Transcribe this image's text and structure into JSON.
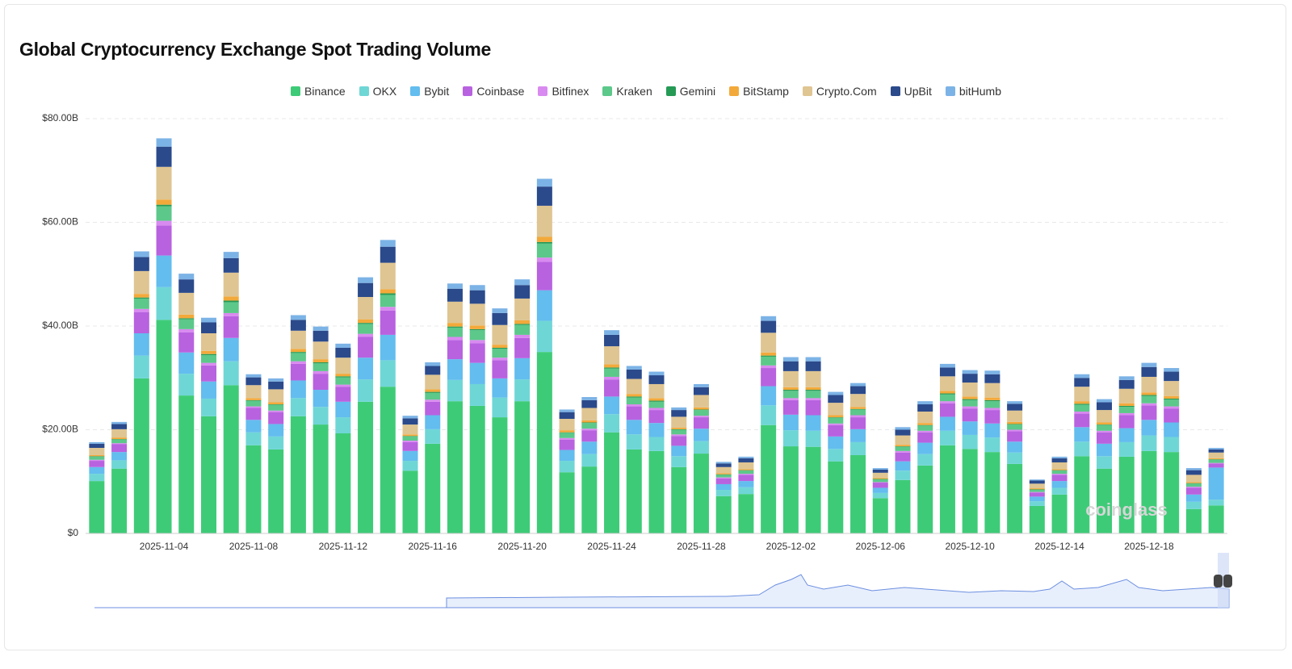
{
  "chart_data": {
    "type": "stacked_bar",
    "title": "Global Cryptocurrency Exchange Spot Trading Volume",
    "watermark": "coinglass",
    "categories": [
      null,
      null,
      null,
      "2025-11-04",
      null,
      null,
      null,
      "2025-11-08",
      null,
      null,
      null,
      "2025-11-12",
      null,
      null,
      null,
      "2025-11-16",
      null,
      null,
      null,
      "2025-11-20",
      null,
      null,
      null,
      "2025-11-24",
      null,
      null,
      null,
      "2025-11-28",
      null,
      null,
      null,
      "2025-12-02",
      null,
      null,
      null,
      "2025-12-06",
      null,
      null,
      null,
      "2025-12-10",
      null,
      null,
      null,
      "2025-12-14",
      null,
      null,
      null,
      "2025-12-18",
      null,
      null,
      null
    ],
    "ylim": [
      0,
      80
    ],
    "yticks": [
      {
        "value": 0,
        "label": "$0"
      },
      {
        "value": 20,
        "label": "$20.00B"
      },
      {
        "value": 40,
        "label": "$40.00B"
      },
      {
        "value": 60,
        "label": "$60.00B"
      },
      {
        "value": 80,
        "label": "$80.00B"
      }
    ],
    "grid": true,
    "legend": "top",
    "series": [
      {
        "name": "Binance",
        "color": "#3ecb78",
        "values": [
          10.1,
          12.5,
          29.9,
          41.2,
          26.6,
          22.6,
          28.6,
          17.0,
          16.2,
          22.6,
          21.0,
          19.3,
          25.4,
          28.3,
          12.1,
          17.3,
          25.5,
          24.6,
          22.4,
          25.5,
          35.0,
          11.8,
          12.9,
          19.5,
          16.2,
          15.9,
          12.8,
          15.4,
          7.2,
          7.6,
          20.9,
          16.8,
          16.7,
          13.9,
          15.1,
          6.8,
          10.3,
          13.1,
          17.0,
          16.3,
          15.7,
          13.4,
          5.3,
          7.5,
          14.9,
          12.5,
          14.8,
          15.9,
          15.7,
          4.7,
          5.4
        ]
      },
      {
        "name": "OKX",
        "color": "#6fd6d6",
        "values": [
          1.4,
          1.6,
          4.4,
          6.3,
          4.2,
          3.4,
          4.6,
          2.5,
          2.5,
          3.5,
          3.4,
          3.1,
          4.3,
          5.1,
          1.9,
          2.8,
          4.1,
          4.2,
          3.8,
          4.2,
          6.0,
          2.2,
          2.4,
          3.5,
          2.9,
          2.7,
          2.1,
          2.4,
          1.2,
          1.3,
          3.8,
          3.1,
          3.1,
          2.4,
          2.5,
          1.0,
          1.8,
          2.2,
          2.8,
          2.7,
          2.8,
          2.2,
          0.9,
          1.3,
          2.8,
          2.4,
          2.8,
          3.0,
          2.9,
          1.4,
          1.1
        ]
      },
      {
        "name": "Bybit",
        "color": "#63bdee",
        "values": [
          1.3,
          1.6,
          4.3,
          6.1,
          4.1,
          3.3,
          4.5,
          2.4,
          2.4,
          3.4,
          3.3,
          3.0,
          4.2,
          4.9,
          1.9,
          2.7,
          4.0,
          4.1,
          3.7,
          4.1,
          5.9,
          2.1,
          2.4,
          3.4,
          2.8,
          2.7,
          2.0,
          2.4,
          1.1,
          1.2,
          3.7,
          3.0,
          3.0,
          2.4,
          2.5,
          1.0,
          1.8,
          2.2,
          2.7,
          2.6,
          2.7,
          2.1,
          0.9,
          1.3,
          2.8,
          2.4,
          2.7,
          3.0,
          2.8,
          1.4,
          6.2
        ]
      },
      {
        "name": "Coinbase",
        "color": "#b862e0",
        "values": [
          1.2,
          1.5,
          4.1,
          5.8,
          3.9,
          3.1,
          4.2,
          2.3,
          2.3,
          3.2,
          3.1,
          2.9,
          4.0,
          4.7,
          1.7,
          2.6,
          3.7,
          3.8,
          3.5,
          3.9,
          5.5,
          2.0,
          2.2,
          3.3,
          2.6,
          2.5,
          1.9,
          2.2,
          1.1,
          1.2,
          3.5,
          2.8,
          2.9,
          2.2,
          2.3,
          1.0,
          1.7,
          2.0,
          2.6,
          2.5,
          2.6,
          2.0,
          0.8,
          1.2,
          2.6,
          2.2,
          2.5,
          2.8,
          2.7,
          1.3,
          0.8
        ]
      },
      {
        "name": "Bitfinex",
        "color": "#d98af0",
        "values": [
          0.2,
          0.2,
          0.6,
          0.9,
          0.6,
          0.5,
          0.6,
          0.3,
          0.3,
          0.5,
          0.5,
          0.4,
          0.6,
          0.7,
          0.3,
          0.4,
          0.6,
          0.6,
          0.5,
          0.6,
          0.8,
          0.3,
          0.3,
          0.5,
          0.4,
          0.4,
          0.3,
          0.3,
          0.2,
          0.2,
          0.5,
          0.4,
          0.4,
          0.3,
          0.4,
          0.1,
          0.3,
          0.3,
          0.4,
          0.4,
          0.4,
          0.3,
          0.1,
          0.2,
          0.4,
          0.3,
          0.4,
          0.4,
          0.4,
          0.2,
          0.1
        ]
      },
      {
        "name": "Kraken",
        "color": "#5cc88a",
        "values": [
          0.6,
          0.7,
          2.0,
          2.8,
          1.9,
          1.5,
          2.1,
          1.1,
          1.1,
          1.6,
          1.5,
          1.4,
          1.9,
          2.3,
          0.8,
          1.3,
          1.8,
          1.9,
          1.7,
          1.9,
          2.7,
          1.0,
          1.1,
          1.6,
          1.3,
          1.2,
          0.9,
          1.1,
          0.5,
          0.6,
          1.7,
          1.4,
          1.4,
          1.1,
          1.1,
          0.5,
          0.8,
          1.0,
          1.3,
          1.2,
          1.3,
          1.0,
          0.4,
          0.6,
          1.3,
          1.1,
          1.2,
          1.4,
          1.3,
          0.6,
          0.6
        ]
      },
      {
        "name": "Gemini",
        "color": "#259a55",
        "values": [
          0.1,
          0.1,
          0.2,
          0.3,
          0.2,
          0.2,
          0.3,
          0.1,
          0.1,
          0.2,
          0.2,
          0.2,
          0.2,
          0.3,
          0.1,
          0.2,
          0.2,
          0.2,
          0.2,
          0.2,
          0.3,
          0.1,
          0.1,
          0.2,
          0.2,
          0.2,
          0.1,
          0.1,
          0.1,
          0.1,
          0.2,
          0.2,
          0.2,
          0.1,
          0.1,
          0.1,
          0.1,
          0.1,
          0.2,
          0.2,
          0.2,
          0.1,
          0.1,
          0.1,
          0.2,
          0.1,
          0.2,
          0.2,
          0.2,
          0.1,
          0.1
        ]
      },
      {
        "name": "BitStamp",
        "color": "#f3a93a",
        "values": [
          0.2,
          0.3,
          0.7,
          1.0,
          0.7,
          0.6,
          0.8,
          0.4,
          0.4,
          0.6,
          0.6,
          0.5,
          0.7,
          0.8,
          0.3,
          0.5,
          0.7,
          0.7,
          0.6,
          0.7,
          1.0,
          0.4,
          0.4,
          0.6,
          0.5,
          0.5,
          0.3,
          0.4,
          0.2,
          0.2,
          0.6,
          0.5,
          0.5,
          0.4,
          0.4,
          0.2,
          0.3,
          0.4,
          0.5,
          0.5,
          0.5,
          0.4,
          0.2,
          0.2,
          0.5,
          0.4,
          0.5,
          0.5,
          0.5,
          0.2,
          0.2
        ]
      },
      {
        "name": "Crypto.Com",
        "color": "#dfc592",
        "values": [
          1.4,
          1.6,
          4.4,
          6.3,
          4.2,
          3.4,
          4.6,
          2.5,
          2.5,
          3.5,
          3.4,
          3.1,
          4.3,
          5.1,
          1.9,
          2.8,
          4.1,
          4.2,
          3.8,
          4.2,
          6.0,
          2.2,
          2.4,
          3.5,
          2.9,
          2.7,
          2.1,
          2.4,
          1.2,
          1.3,
          3.8,
          3.1,
          3.1,
          2.4,
          2.5,
          1.0,
          1.8,
          2.2,
          2.8,
          2.7,
          2.8,
          2.2,
          0.9,
          1.3,
          2.8,
          2.4,
          2.8,
          3.0,
          2.9,
          1.4,
          1.1
        ]
      },
      {
        "name": "UpBit",
        "color": "#2b4a8b",
        "values": [
          0.8,
          1.0,
          2.7,
          3.9,
          2.6,
          2.1,
          2.8,
          1.5,
          1.5,
          2.1,
          2.1,
          1.9,
          2.7,
          3.1,
          1.2,
          1.7,
          2.5,
          2.6,
          2.3,
          2.6,
          3.7,
          1.3,
          1.5,
          2.2,
          1.8,
          1.7,
          1.3,
          1.5,
          0.7,
          0.8,
          2.3,
          1.9,
          1.9,
          1.5,
          1.5,
          0.6,
          1.1,
          1.4,
          1.7,
          1.7,
          1.7,
          1.3,
          0.6,
          0.8,
          1.7,
          1.5,
          1.7,
          1.9,
          1.8,
          0.9,
          0.6
        ]
      },
      {
        "name": "bitHumb",
        "color": "#7cb3e6",
        "values": [
          0.3,
          0.4,
          1.1,
          1.6,
          1.1,
          0.9,
          1.2,
          0.6,
          0.6,
          0.9,
          0.8,
          0.8,
          1.1,
          1.3,
          0.5,
          0.7,
          1.0,
          1.0,
          0.9,
          1.1,
          1.5,
          0.5,
          0.6,
          0.9,
          0.7,
          0.7,
          0.5,
          0.6,
          0.3,
          0.3,
          0.9,
          0.8,
          0.8,
          0.6,
          0.6,
          0.3,
          0.5,
          0.6,
          0.7,
          0.7,
          0.7,
          0.5,
          0.2,
          0.3,
          0.7,
          0.6,
          0.7,
          0.8,
          0.7,
          0.4,
          0.3
        ]
      }
    ]
  }
}
